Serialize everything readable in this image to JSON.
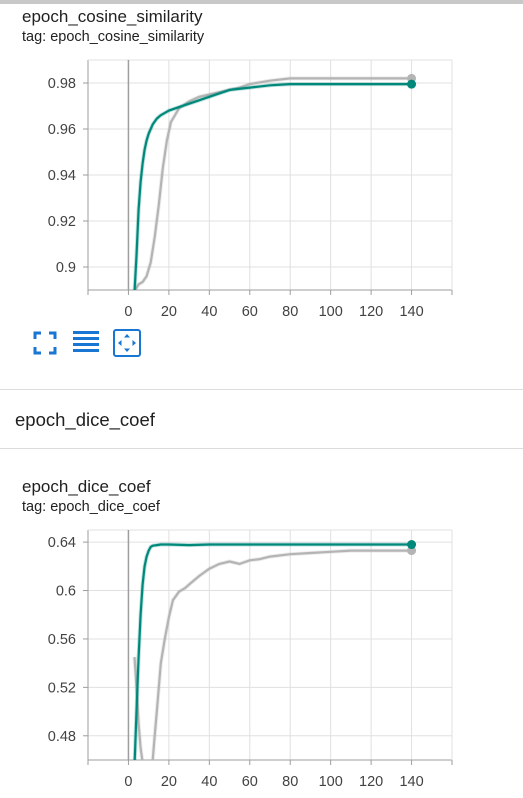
{
  "group": {
    "title": "epoch_dice_coef"
  },
  "tools": {
    "fullscreen": "fullscreen-icon",
    "data": "data-table-icon",
    "fit": "fit-domain-icon"
  },
  "colors": {
    "accent": "#00897b",
    "other_run": "#b4b4b4",
    "grid": "#e0e0e0",
    "icon": "#1976d2"
  },
  "chart_data": [
    {
      "type": "line",
      "title": "epoch_cosine_similarity",
      "tag_label": "tag: epoch_cosine_similarity",
      "xlabel": "",
      "ylabel": "",
      "xlim": [
        -20,
        160
      ],
      "ylim": [
        0.89,
        0.99
      ],
      "xticks": [
        "0",
        "20",
        "40",
        "60",
        "80",
        "100",
        "120",
        "140"
      ],
      "yticks": [
        "0.9",
        "0.92",
        "0.94",
        "0.96",
        "0.98"
      ],
      "grid": true,
      "series": [
        {
          "color": "#b4b4b4",
          "x": [
            3,
            5,
            7,
            9,
            11,
            13,
            15,
            17,
            19,
            21,
            25,
            30,
            35,
            40,
            45,
            50,
            55,
            60,
            70,
            80,
            90,
            100,
            110,
            120,
            130,
            140
          ],
          "values": [
            0.8895,
            0.8925,
            0.8935,
            0.896,
            0.902,
            0.913,
            0.927,
            0.943,
            0.955,
            0.963,
            0.969,
            0.972,
            0.974,
            0.975,
            0.976,
            0.977,
            0.978,
            0.9795,
            0.981,
            0.982,
            0.982,
            0.982,
            0.982,
            0.982,
            0.982,
            0.982
          ],
          "end_marker": true
        },
        {
          "color": "#00897b",
          "x": [
            3,
            4,
            5,
            6,
            7,
            8,
            9,
            10,
            12,
            14,
            16,
            20,
            25,
            30,
            40,
            50,
            60,
            70,
            80,
            100,
            120,
            140
          ],
          "values": [
            0.889,
            0.905,
            0.925,
            0.937,
            0.945,
            0.951,
            0.955,
            0.958,
            0.962,
            0.9645,
            0.966,
            0.968,
            0.9695,
            0.971,
            0.974,
            0.977,
            0.978,
            0.979,
            0.9795,
            0.9795,
            0.9795,
            0.9795
          ],
          "end_marker": true
        }
      ]
    },
    {
      "type": "line",
      "title": "epoch_dice_coef",
      "tag_label": "tag: epoch_dice_coef",
      "xlabel": "",
      "ylabel": "",
      "xlim": [
        -20,
        160
      ],
      "ylim": [
        0.46,
        0.65
      ],
      "xticks": [
        "0",
        "20",
        "40",
        "60",
        "80",
        "100",
        "120",
        "140"
      ],
      "yticks": [
        "0.48",
        "0.52",
        "0.56",
        "0.6",
        "0.64"
      ],
      "grid": true,
      "series": [
        {
          "color": "#b4b4b4",
          "x": [
            3,
            4,
            5,
            6,
            7,
            8,
            9,
            10,
            11,
            12,
            13,
            14,
            15,
            16,
            18,
            20,
            22,
            25,
            28,
            30,
            35,
            40,
            45,
            50,
            55,
            60,
            65,
            70,
            80,
            90,
            100,
            110,
            120,
            130,
            140
          ],
          "values": [
            0.545,
            0.52,
            0.49,
            0.47,
            0.458,
            0.45,
            0.44,
            0.436,
            0.44,
            0.46,
            0.48,
            0.5,
            0.52,
            0.54,
            0.56,
            0.578,
            0.592,
            0.599,
            0.602,
            0.605,
            0.612,
            0.618,
            0.622,
            0.624,
            0.622,
            0.625,
            0.626,
            0.628,
            0.63,
            0.631,
            0.632,
            0.633,
            0.633,
            0.633,
            0.633
          ],
          "end_marker": true
        },
        {
          "color": "#00897b",
          "x": [
            3,
            4,
            5,
            6,
            7,
            8,
            9,
            10,
            11,
            12,
            14,
            16,
            20,
            30,
            40,
            50,
            60,
            80,
            100,
            120,
            140
          ],
          "values": [
            0.455,
            0.5,
            0.545,
            0.58,
            0.605,
            0.62,
            0.628,
            0.633,
            0.636,
            0.637,
            0.6375,
            0.638,
            0.638,
            0.6375,
            0.638,
            0.638,
            0.638,
            0.638,
            0.638,
            0.638,
            0.638
          ],
          "end_marker": true
        }
      ]
    }
  ]
}
